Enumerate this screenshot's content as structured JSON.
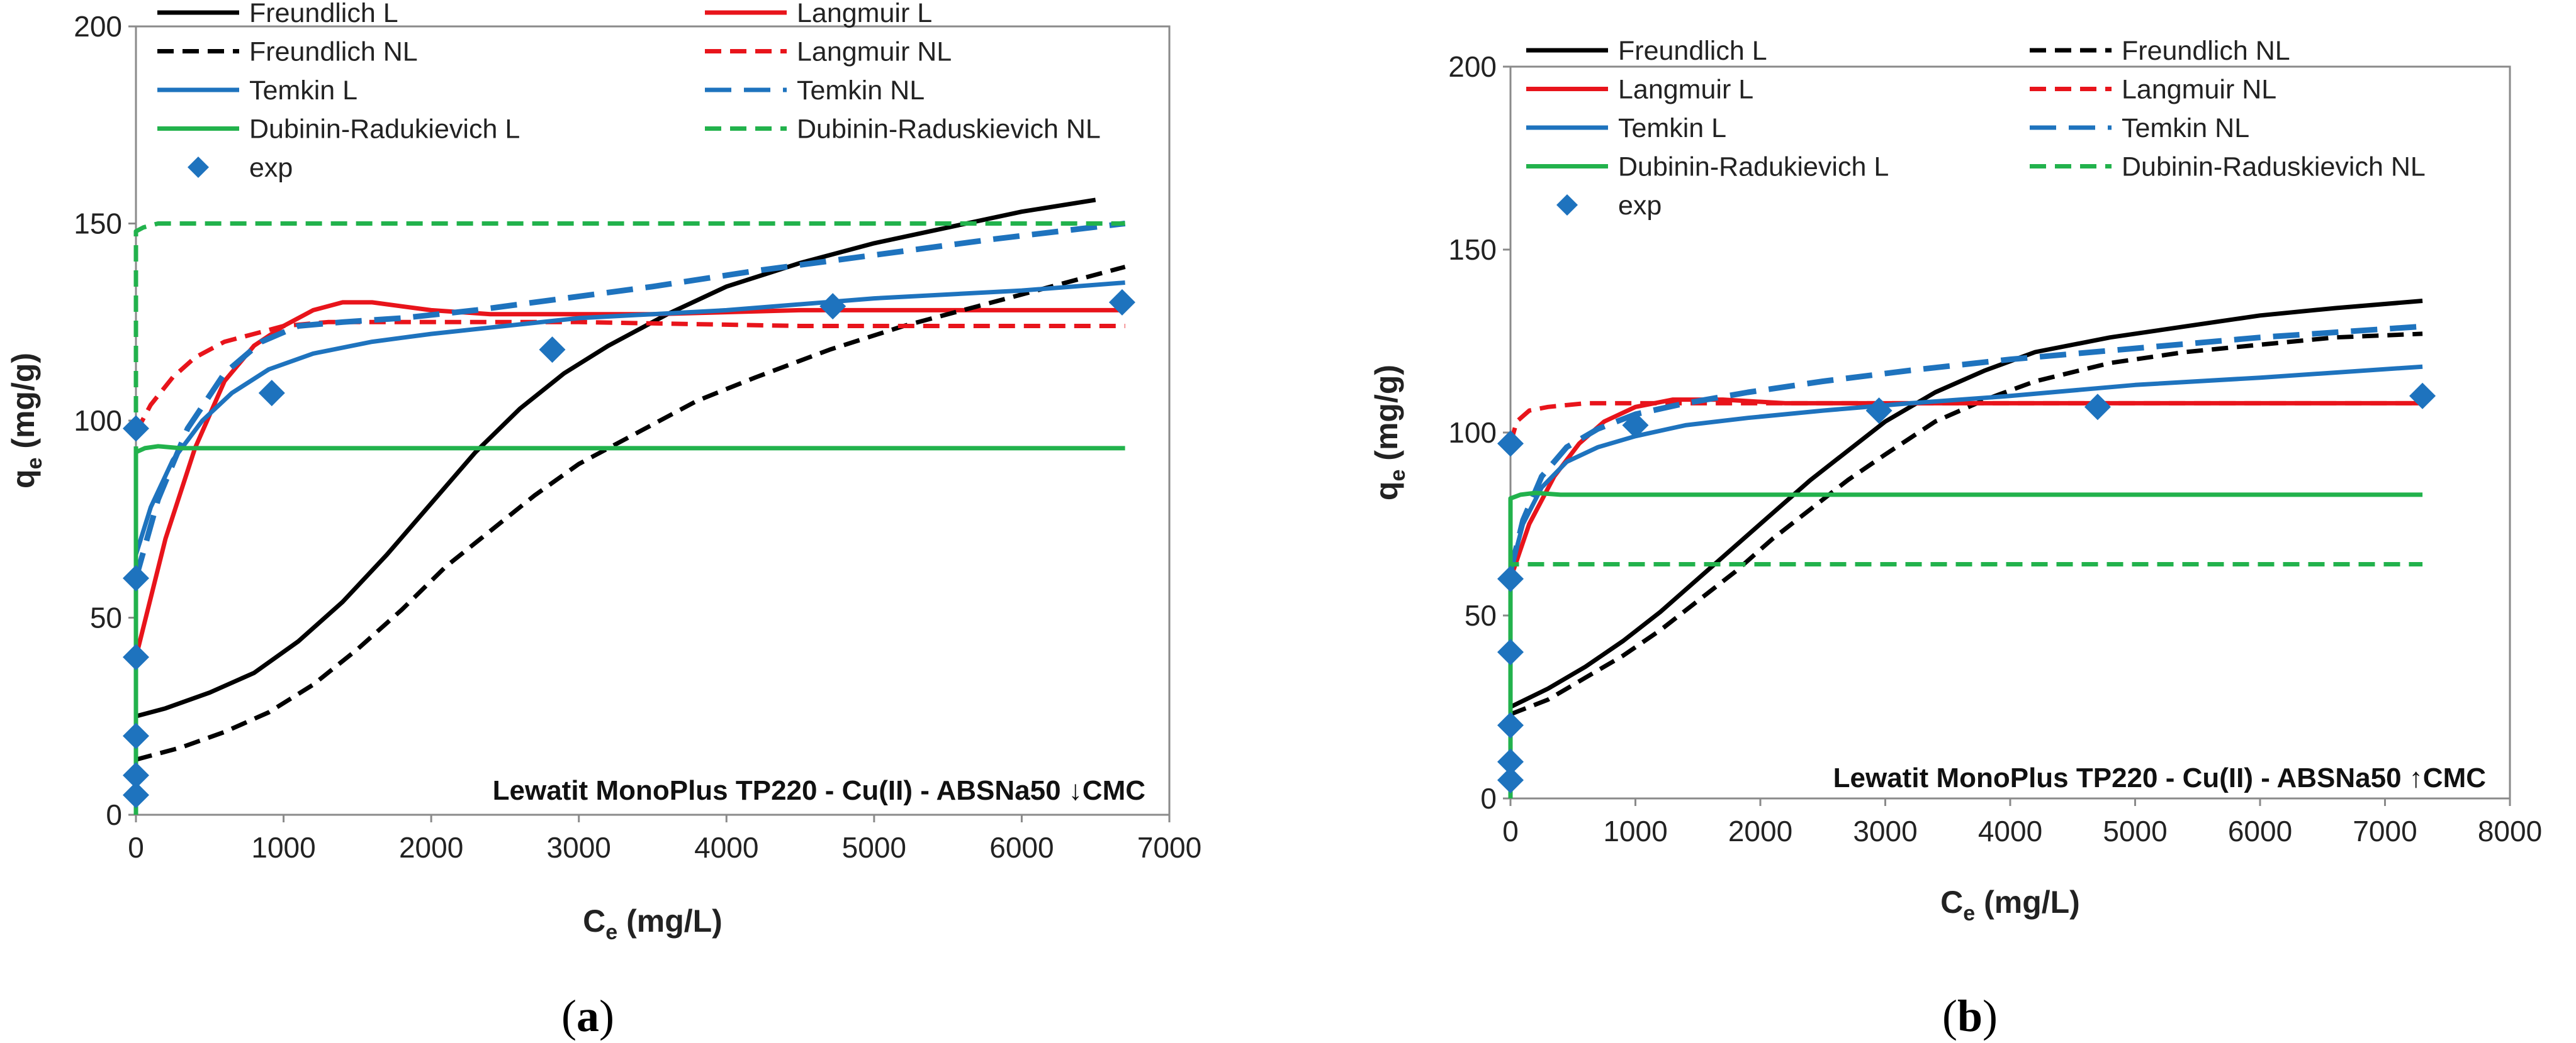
{
  "chart_data": [
    {
      "panel": "a",
      "type": "line",
      "caption": {
        "open": "(",
        "letter": "a",
        "close": ")"
      },
      "annotation": "Lewatit MonoPlus TP220 - Cu(II) - ABSNa50 ↓CMC",
      "xlabel": {
        "main": "C",
        "sub": "e",
        "unit": " (mg/L)"
      },
      "ylabel": {
        "main": "q",
        "sub": "e",
        "unit": " (mg/g)"
      },
      "xlim": [
        0,
        7000
      ],
      "ylim": [
        0,
        200
      ],
      "xticks": [
        0,
        1000,
        2000,
        3000,
        4000,
        5000,
        6000,
        7000
      ],
      "yticks": [
        0,
        50,
        100,
        150,
        200
      ],
      "legend_columns": 2,
      "series": [
        {
          "name": "Freundlich L",
          "color": "#000000",
          "style": "solid",
          "x": [
            0,
            200,
            500,
            800,
            1100,
            1400,
            1700,
            2000,
            2300,
            2600,
            2900,
            3200,
            3600,
            4000,
            4500,
            5000,
            5500,
            6000,
            6500
          ],
          "y": [
            25,
            27,
            31,
            36,
            44,
            54,
            66,
            79,
            92,
            103,
            112,
            119,
            127,
            134,
            140,
            145,
            149,
            153,
            156
          ]
        },
        {
          "name": "Langmuir L",
          "color": "#e8141b",
          "style": "solid",
          "x": [
            0,
            200,
            400,
            600,
            800,
            1000,
            1200,
            1400,
            1600,
            1800,
            2000,
            2400,
            2800,
            3500,
            4500,
            5500,
            6700
          ],
          "y": [
            40,
            70,
            93,
            110,
            119,
            124,
            128,
            130,
            130,
            129,
            128,
            127,
            127,
            127,
            128,
            128,
            128
          ]
        },
        {
          "name": "Freundlich NL",
          "color": "#000000",
          "style": "dash",
          "x": [
            0,
            300,
            600,
            900,
            1200,
            1500,
            1800,
            2100,
            2400,
            2700,
            3000,
            3400,
            3800,
            4200,
            4700,
            5200,
            5700,
            6200,
            6700
          ],
          "y": [
            14,
            17,
            21,
            26,
            33,
            42,
            52,
            63,
            72,
            81,
            89,
            97,
            105,
            111,
            118,
            124,
            129,
            134,
            139
          ]
        },
        {
          "name": "Langmuir NL",
          "color": "#e8141b",
          "style": "dash",
          "x": [
            0,
            100,
            250,
            400,
            600,
            800,
            1000,
            1300,
            1600,
            2000,
            3000,
            4500,
            6700
          ],
          "y": [
            97,
            104,
            111,
            116,
            120,
            122,
            124,
            125,
            125,
            125,
            125,
            124,
            124
          ]
        },
        {
          "name": "Temkin L",
          "color": "#1e73be",
          "style": "solid",
          "x": [
            0,
            100,
            250,
            450,
            650,
            900,
            1200,
            1600,
            2000,
            2500,
            3000,
            4000,
            5000,
            6000,
            6700
          ],
          "y": [
            66,
            78,
            90,
            100,
            107,
            113,
            117,
            120,
            122,
            124,
            126,
            128,
            131,
            133,
            135
          ]
        },
        {
          "name": "Temkin NL",
          "color": "#1e73be",
          "style": "longdash",
          "x": [
            0,
            150,
            350,
            600,
            850,
            1100,
            1400,
            1800,
            2300,
            2900,
            3500,
            4200,
            5000,
            5800,
            6700
          ],
          "y": [
            60,
            80,
            98,
            112,
            120,
            124,
            125,
            126,
            128,
            131,
            134,
            138,
            142,
            146,
            150
          ]
        },
        {
          "name": "Dubinin-Radukievich L",
          "color": "#22b24c",
          "style": "solid",
          "x": [
            0,
            0,
            60,
            150,
            300,
            800,
            2000,
            4000,
            6700
          ],
          "y": [
            0,
            92,
            93,
            93.5,
            93,
            93,
            93,
            93,
            93
          ]
        },
        {
          "name": "Dubinin-Raduskievich NL",
          "color": "#22b24c",
          "style": "dash",
          "x": [
            0,
            0,
            50,
            150,
            500,
            1500,
            3000,
            5000,
            6700
          ],
          "y": [
            0,
            148,
            149,
            150,
            150,
            150,
            150,
            150,
            150
          ]
        },
        {
          "name": "exp",
          "color": "#1e73be",
          "style": "marker",
          "x": [
            0,
            0,
            0,
            0,
            0,
            0,
            920,
            2820,
            4720,
            6680
          ],
          "y": [
            5,
            10,
            20,
            40,
            60,
            98,
            107,
            118,
            129,
            130
          ]
        }
      ]
    },
    {
      "panel": "b",
      "type": "line",
      "caption": {
        "open": "(",
        "letter": "b",
        "close": ")"
      },
      "annotation": "Lewatit MonoPlus TP220 - Cu(II) - ABSNa50  ↑CMC",
      "xlabel": {
        "main": "C",
        "sub": "e",
        "unit": " (mg/L)"
      },
      "ylabel": {
        "main": "q",
        "sub": "e",
        "unit": " (mg/g)"
      },
      "xlim": [
        0,
        8000
      ],
      "ylim": [
        0,
        200
      ],
      "xticks": [
        0,
        1000,
        2000,
        3000,
        4000,
        5000,
        6000,
        7000,
        8000
      ],
      "yticks": [
        0,
        50,
        100,
        150,
        200
      ],
      "legend_columns": 2,
      "series": [
        {
          "name": "Freundlich L",
          "color": "#000000",
          "style": "solid",
          "x": [
            0,
            300,
            600,
            900,
            1200,
            1500,
            1800,
            2100,
            2400,
            2700,
            3000,
            3400,
            3800,
            4200,
            4800,
            5400,
            6000,
            6600,
            7300
          ],
          "y": [
            25,
            30,
            36,
            43,
            51,
            60,
            69,
            78,
            87,
            95,
            103,
            111,
            117,
            122,
            126,
            129,
            132,
            134,
            136
          ]
        },
        {
          "name": "Freundlich NL",
          "color": "#000000",
          "style": "dash",
          "x": [
            0,
            300,
            600,
            900,
            1200,
            1500,
            1800,
            2100,
            2400,
            2700,
            3000,
            3400,
            3800,
            4200,
            4800,
            5400,
            6000,
            6600,
            7300
          ],
          "y": [
            23,
            27,
            33,
            39,
            46,
            54,
            62,
            71,
            79,
            87,
            94,
            103,
            109,
            114,
            119,
            122,
            124,
            126,
            127
          ]
        },
        {
          "name": "Langmuir L",
          "color": "#e8141b",
          "style": "solid",
          "x": [
            0,
            150,
            350,
            550,
            750,
            1000,
            1300,
            1700,
            2200,
            3000,
            4500,
            6000,
            7300
          ],
          "y": [
            60,
            75,
            88,
            97,
            103,
            107,
            109,
            109,
            108,
            108,
            108,
            108,
            108
          ]
        },
        {
          "name": "Langmuir NL",
          "color": "#e8141b",
          "style": "dash",
          "x": [
            0,
            50,
            150,
            300,
            600,
            1000,
            1500,
            2500,
            4000,
            5500,
            7300
          ],
          "y": [
            97,
            103,
            106,
            107,
            108,
            108,
            108,
            108,
            108,
            108,
            108
          ]
        },
        {
          "name": "Temkin L",
          "color": "#1e73be",
          "style": "solid",
          "x": [
            0,
            100,
            250,
            450,
            700,
            1000,
            1400,
            1900,
            2500,
            3200,
            4000,
            5000,
            6000,
            7300
          ],
          "y": [
            62,
            75,
            85,
            92,
            96,
            99,
            102,
            104,
            106,
            108,
            110,
            113,
            115,
            118
          ]
        },
        {
          "name": "Temkin NL",
          "color": "#1e73be",
          "style": "longdash",
          "x": [
            0,
            100,
            250,
            450,
            700,
            1000,
            1400,
            1900,
            2500,
            3200,
            4000,
            5000,
            6000,
            7300
          ],
          "y": [
            62,
            76,
            88,
            96,
            101,
            105,
            108,
            111,
            114,
            117,
            120,
            123,
            126,
            129
          ]
        },
        {
          "name": "Dubinin-Radukievich L",
          "color": "#22b24c",
          "style": "solid",
          "x": [
            0,
            0,
            80,
            200,
            400,
            1000,
            3000,
            5000,
            7300
          ],
          "y": [
            0,
            82,
            83,
            83.5,
            83,
            83,
            83,
            83,
            83
          ]
        },
        {
          "name": "Dubinin-Raduskievich NL",
          "color": "#22b24c",
          "style": "dash",
          "x": [
            0,
            0,
            60,
            200,
            1000,
            3000,
            5000,
            7300
          ],
          "y": [
            0,
            64,
            64,
            64,
            64,
            64,
            64,
            64
          ]
        },
        {
          "name": "exp",
          "color": "#1e73be",
          "style": "marker",
          "x": [
            0,
            0,
            0,
            0,
            0,
            0,
            1000,
            2950,
            4700,
            7300
          ],
          "y": [
            5,
            10,
            20,
            40,
            60,
            97,
            102,
            106,
            107,
            110
          ]
        }
      ]
    }
  ]
}
